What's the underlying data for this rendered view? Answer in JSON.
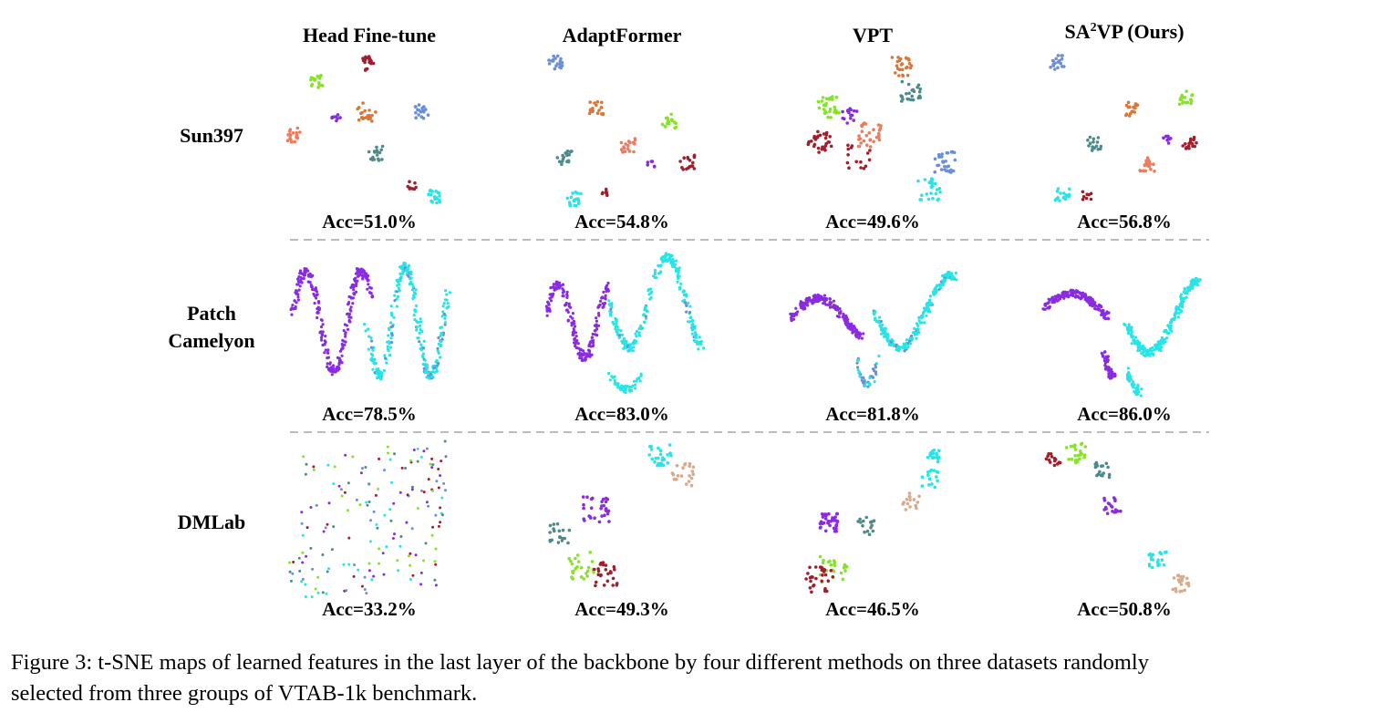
{
  "figure": {
    "columns": [
      {
        "text": "Head Fine-tune"
      },
      {
        "text": "AdaptFormer"
      },
      {
        "text": "VPT"
      },
      {
        "prefix": "SA",
        "sup": "2",
        "suffix": "VP (Ours)"
      }
    ],
    "rows": [
      {
        "lines": [
          "Sun397"
        ],
        "acc": [
          "Acc=51.0%",
          "Acc=54.8%",
          "Acc=49.6%",
          "Acc=56.8%"
        ]
      },
      {
        "lines": [
          "Patch",
          "Camelyon"
        ],
        "acc": [
          "Acc=78.5%",
          "Acc=83.0%",
          "Acc=81.8%",
          "Acc=86.0%"
        ]
      },
      {
        "lines": [
          "DMLab"
        ],
        "acc": [
          "Acc=33.2%",
          "Acc=49.3%",
          "Acc=46.5%",
          "Acc=50.8%"
        ]
      }
    ],
    "caption": {
      "lines": [
        "Figure 3: t-SNE maps of learned features in the last layer of the backbone by four different methods on three datasets randomly",
        "selected from three groups of VTAB-1k benchmark."
      ]
    }
  }
}
